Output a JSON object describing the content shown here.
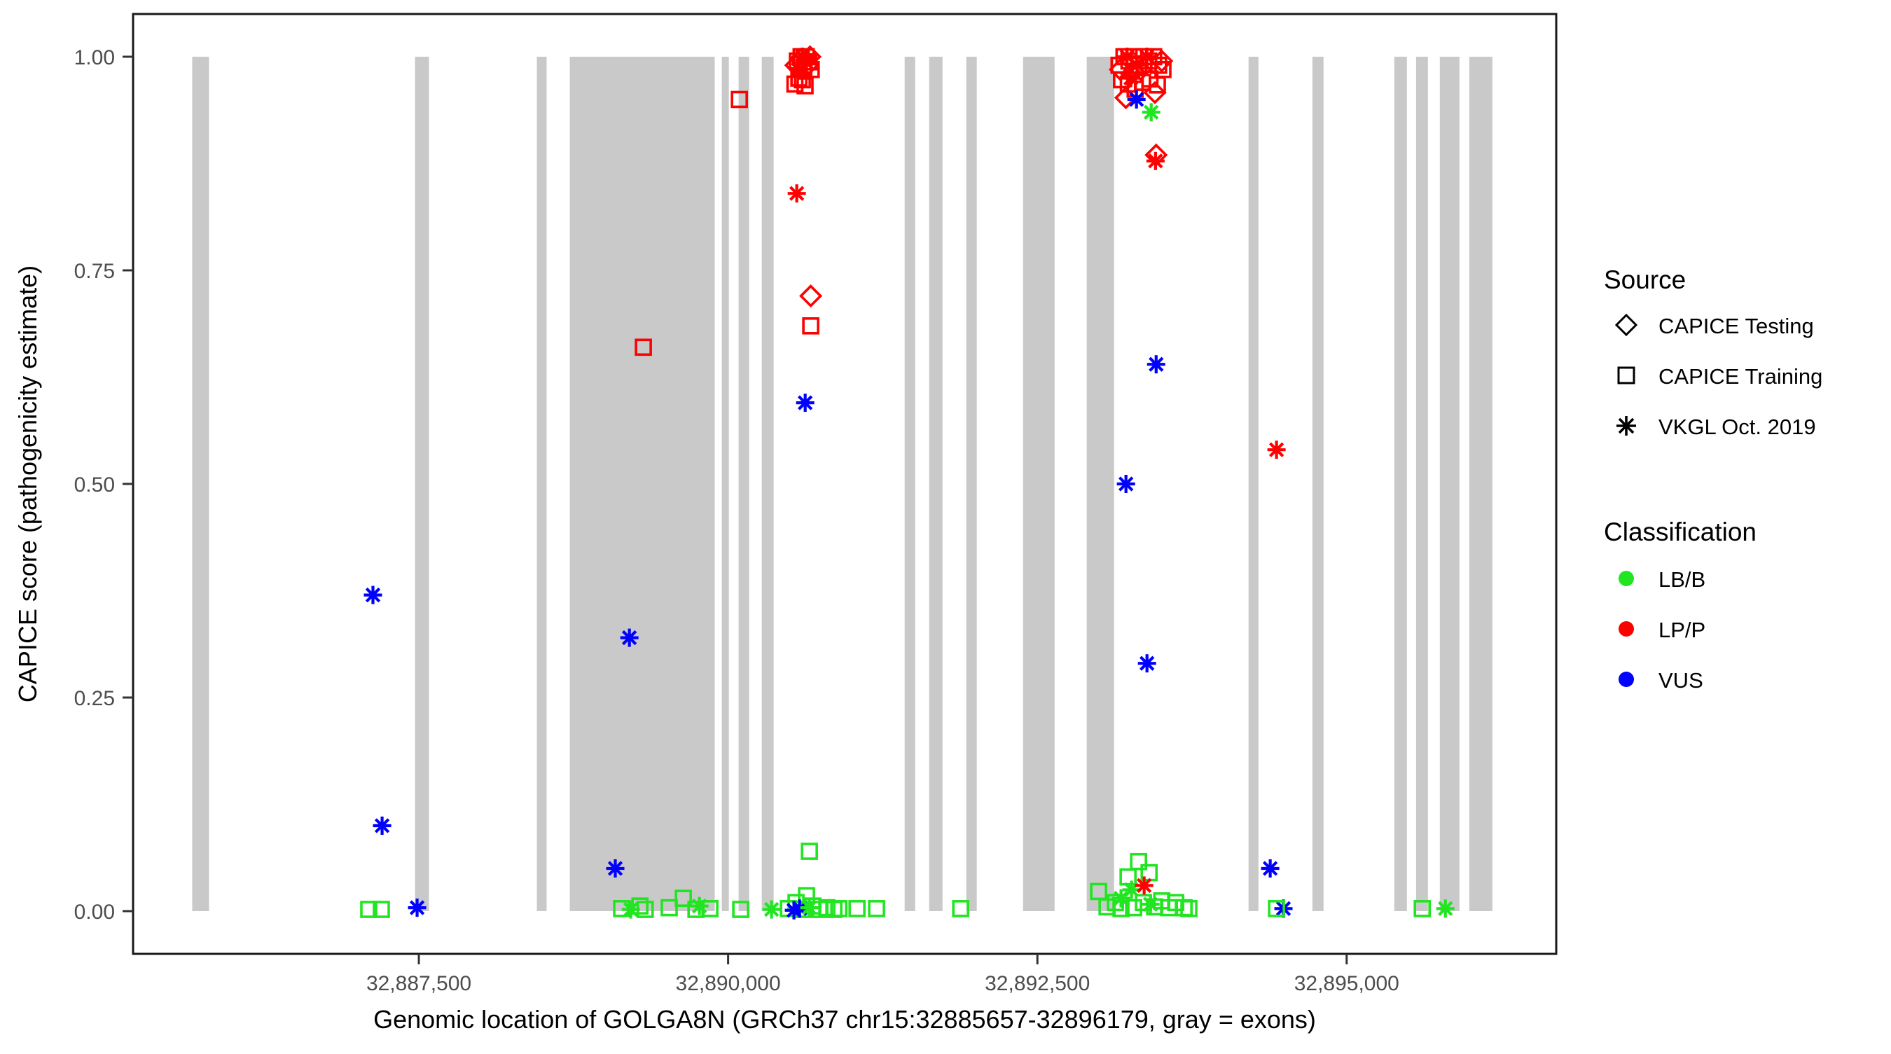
{
  "y_axis": {
    "label": "CAPICE score (pathogenicity estimate)",
    "ticks": [
      {
        "label": "1.00",
        "value": 1.0
      },
      {
        "label": "0.75",
        "value": 0.75
      },
      {
        "label": "0.50",
        "value": 0.5
      },
      {
        "label": "0.25",
        "value": 0.25
      },
      {
        "label": "0.00",
        "value": 0.0
      }
    ]
  },
  "x_axis": {
    "label": "Genomic location of GOLGA8N (GRCh37 chr15:32885657-32896179, gray = exons)",
    "ticks": [
      {
        "label": "32,887,500",
        "value": 32887500
      },
      {
        "label": "32,890,000",
        "value": 32890000
      },
      {
        "label": "32,892,500",
        "value": 32892500
      },
      {
        "label": "32,895,000",
        "value": 32895000
      }
    ]
  },
  "legend": {
    "source": {
      "title": "Source",
      "items": [
        {
          "label": "CAPICE Testing",
          "shape": "diamond",
          "code": "D"
        },
        {
          "label": "CAPICE Training",
          "shape": "square",
          "code": "S"
        },
        {
          "label": "VKGL Oct. 2019",
          "shape": "asterisk",
          "code": "A"
        }
      ]
    },
    "classification": {
      "title": "Classification",
      "items": [
        {
          "label": "LB/B",
          "color": "#21e521"
        },
        {
          "label": "LP/P",
          "color": "#ff0000"
        },
        {
          "label": "VUS",
          "color": "#0000ff"
        }
      ]
    }
  },
  "chart_data": {
    "type": "scatter",
    "title": "",
    "xlabel": "Genomic location of GOLGA8N (GRCh37 chr15:32885657-32896179, gray = exons)",
    "ylabel": "CAPICE score (pathogenicity estimate)",
    "x_domain": [
      32885190,
      32896694
    ],
    "y_domain": [
      -0.05,
      1.05
    ],
    "gene_range": [
      32885657,
      32896179
    ],
    "grid": "off",
    "legend_position": "right",
    "colors": {
      "LB_B": "#21e521",
      "LP_P": "#ff0000",
      "VUS": "#0000ff",
      "exon": "#c9c9c9",
      "tick_text": "#4d4d4d",
      "axis": "#333333"
    },
    "exons": [
      [
        32885668,
        32885804
      ],
      [
        32887469,
        32887582
      ],
      [
        32888454,
        32888533
      ],
      [
        32888720,
        32889892
      ],
      [
        32889949,
        32890006
      ],
      [
        32890085,
        32890170
      ],
      [
        32890272,
        32890368
      ],
      [
        32891427,
        32891512
      ],
      [
        32891625,
        32891733
      ],
      [
        32891925,
        32892010
      ],
      [
        32892384,
        32892639
      ],
      [
        32892899,
        32893120
      ],
      [
        32894207,
        32894287
      ],
      [
        32894723,
        32894813
      ],
      [
        32895385,
        32895487
      ],
      [
        32895561,
        32895657
      ],
      [
        32895753,
        32895912
      ],
      [
        32895991,
        32896178
      ]
    ],
    "points": [
      [
        32887129,
        0.37,
        "VUS",
        "A"
      ],
      [
        32887203,
        0.1,
        "VUS",
        "A"
      ],
      [
        32887095,
        0.002,
        "LB_B",
        "S"
      ],
      [
        32887197,
        0.002,
        "LB_B",
        "S"
      ],
      [
        32887486,
        0.004,
        "VUS",
        "A"
      ],
      [
        32889315,
        0.66,
        "LP_P",
        "S"
      ],
      [
        32889202,
        0.32,
        "VUS",
        "A"
      ],
      [
        32889088,
        0.05,
        "VUS",
        "A"
      ],
      [
        32889139,
        0.003,
        "LB_B",
        "S"
      ],
      [
        32889213,
        0.002,
        "LB_B",
        "A"
      ],
      [
        32889287,
        0.006,
        "LB_B",
        "S"
      ],
      [
        32889330,
        0.002,
        "LB_B",
        "S"
      ],
      [
        32889524,
        0.004,
        "LB_B",
        "S"
      ],
      [
        32889638,
        0.015,
        "LB_B",
        "S"
      ],
      [
        32889740,
        0.002,
        "LB_B",
        "S"
      ],
      [
        32889768,
        0.006,
        "LB_B",
        "A"
      ],
      [
        32889853,
        0.003,
        "LB_B",
        "S"
      ],
      [
        32890091,
        0.95,
        "LP_P",
        "S"
      ],
      [
        32890102,
        0.002,
        "LB_B",
        "S"
      ],
      [
        32890351,
        0.002,
        "LB_B",
        "A"
      ],
      [
        32890560,
        0.995,
        "LP_P",
        "S"
      ],
      [
        32890590,
        1.0,
        "LP_P",
        "S"
      ],
      [
        32890612,
        0.988,
        "LP_P",
        "S"
      ],
      [
        32890632,
        1.0,
        "LP_P",
        "S"
      ],
      [
        32890652,
        0.994,
        "LP_P",
        "S"
      ],
      [
        32890672,
        0.985,
        "LP_P",
        "S"
      ],
      [
        32890600,
        0.973,
        "LP_P",
        "S"
      ],
      [
        32890540,
        0.968,
        "LP_P",
        "S"
      ],
      [
        32890572,
        0.975,
        "LP_P",
        "S"
      ],
      [
        32890622,
        0.966,
        "LP_P",
        "S"
      ],
      [
        32890582,
        0.997,
        "LP_P",
        "D"
      ],
      [
        32890642,
        0.99,
        "LP_P",
        "D"
      ],
      [
        32890662,
        1.0,
        "LP_P",
        "D"
      ],
      [
        32890547,
        0.99,
        "LP_P",
        "D"
      ],
      [
        32890602,
        1.0,
        "LP_P",
        "A"
      ],
      [
        32890634,
        0.993,
        "LP_P",
        "A"
      ],
      [
        32890567,
        0.985,
        "LP_P",
        "A"
      ],
      [
        32890555,
        0.84,
        "LP_P",
        "A"
      ],
      [
        32890668,
        0.72,
        "LP_P",
        "D"
      ],
      [
        32890668,
        0.685,
        "LP_P",
        "S"
      ],
      [
        32890623,
        0.595,
        "VUS",
        "A"
      ],
      [
        32890657,
        0.07,
        "LB_B",
        "S"
      ],
      [
        32890487,
        0.003,
        "LB_B",
        "S"
      ],
      [
        32890549,
        0.01,
        "LB_B",
        "S"
      ],
      [
        32890606,
        0.002,
        "LB_B",
        "S"
      ],
      [
        32890634,
        0.018,
        "LB_B",
        "S"
      ],
      [
        32890685,
        0.006,
        "LB_B",
        "S"
      ],
      [
        32890742,
        0.002,
        "LB_B",
        "S"
      ],
      [
        32890798,
        0.004,
        "LB_B",
        "S"
      ],
      [
        32890855,
        0.002,
        "LB_B",
        "S"
      ],
      [
        32890895,
        0.003,
        "LB_B",
        "S"
      ],
      [
        32890578,
        0.003,
        "VUS",
        "A"
      ],
      [
        32890532,
        0.001,
        "VUS",
        "A"
      ],
      [
        32890657,
        0.004,
        "LB_B",
        "A"
      ],
      [
        32891042,
        0.003,
        "LB_B",
        "S"
      ],
      [
        32891200,
        0.003,
        "LB_B",
        "S"
      ],
      [
        32891880,
        0.003,
        "LB_B",
        "S"
      ],
      [
        32893160,
        0.99,
        "LP_P",
        "S"
      ],
      [
        32893200,
        1.0,
        "LP_P",
        "S"
      ],
      [
        32893240,
        0.995,
        "LP_P",
        "S"
      ],
      [
        32893280,
        1.0,
        "LP_P",
        "S"
      ],
      [
        32893320,
        0.99,
        "LP_P",
        "S"
      ],
      [
        32893360,
        1.0,
        "LP_P",
        "S"
      ],
      [
        32893400,
        0.995,
        "LP_P",
        "S"
      ],
      [
        32893440,
        1.0,
        "LP_P",
        "S"
      ],
      [
        32893480,
        0.99,
        "LP_P",
        "S"
      ],
      [
        32893515,
        0.985,
        "LP_P",
        "S"
      ],
      [
        32893180,
        0.973,
        "LP_P",
        "S"
      ],
      [
        32893235,
        0.968,
        "LP_P",
        "S"
      ],
      [
        32893290,
        0.962,
        "LP_P",
        "S"
      ],
      [
        32893350,
        0.97,
        "LP_P",
        "S"
      ],
      [
        32893410,
        0.974,
        "LP_P",
        "S"
      ],
      [
        32893470,
        0.967,
        "LP_P",
        "S"
      ],
      [
        32893170,
        0.985,
        "LP_P",
        "D"
      ],
      [
        32893260,
        0.98,
        "LP_P",
        "D"
      ],
      [
        32893335,
        0.985,
        "LP_P",
        "D"
      ],
      [
        32893450,
        0.958,
        "LP_P",
        "D"
      ],
      [
        32893505,
        0.995,
        "LP_P",
        "D"
      ],
      [
        32893215,
        0.952,
        "LP_P",
        "D"
      ],
      [
        32893225,
        1.0,
        "LP_P",
        "A"
      ],
      [
        32893305,
        0.99,
        "LP_P",
        "A"
      ],
      [
        32893385,
        1.0,
        "LP_P",
        "A"
      ],
      [
        32893255,
        0.975,
        "LP_P",
        "A"
      ],
      [
        32893301,
        0.95,
        "VUS",
        "A"
      ],
      [
        32893420,
        0.935,
        "LB_B",
        "A"
      ],
      [
        32893460,
        0.885,
        "LP_P",
        "D"
      ],
      [
        32893455,
        0.878,
        "LP_P",
        "A"
      ],
      [
        32893460,
        0.64,
        "VUS",
        "A"
      ],
      [
        32893216,
        0.5,
        "VUS",
        "A"
      ],
      [
        32893386,
        0.29,
        "VUS",
        "A"
      ],
      [
        32894433,
        0.54,
        "LP_P",
        "A"
      ],
      [
        32892995,
        0.023,
        "LB_B",
        "S"
      ],
      [
        32893063,
        0.005,
        "LB_B",
        "S"
      ],
      [
        32893131,
        0.01,
        "LB_B",
        "S"
      ],
      [
        32893176,
        0.003,
        "LB_B",
        "S"
      ],
      [
        32893233,
        0.04,
        "LB_B",
        "S"
      ],
      [
        32893278,
        0.004,
        "LB_B",
        "S"
      ],
      [
        32893318,
        0.058,
        "LB_B",
        "S"
      ],
      [
        32893357,
        0.01,
        "LB_B",
        "S"
      ],
      [
        32893403,
        0.045,
        "LB_B",
        "S"
      ],
      [
        32893448,
        0.005,
        "LB_B",
        "S"
      ],
      [
        32893505,
        0.012,
        "LB_B",
        "S"
      ],
      [
        32893561,
        0.004,
        "LB_B",
        "S"
      ],
      [
        32893618,
        0.01,
        "LB_B",
        "S"
      ],
      [
        32893686,
        0.004,
        "LB_B",
        "S"
      ],
      [
        32893725,
        0.003,
        "LB_B",
        "S"
      ],
      [
        32893261,
        0.025,
        "LB_B",
        "A"
      ],
      [
        32893414,
        0.008,
        "LB_B",
        "A"
      ],
      [
        32893176,
        0.015,
        "LB_B",
        "A"
      ],
      [
        32893363,
        0.03,
        "LP_P",
        "A"
      ],
      [
        32894382,
        0.05,
        "VUS",
        "A"
      ],
      [
        32894489,
        0.003,
        "VUS",
        "A"
      ],
      [
        32894433,
        0.003,
        "LB_B",
        "S"
      ],
      [
        32895611,
        0.003,
        "LB_B",
        "S"
      ],
      [
        32895798,
        0.003,
        "LB_B",
        "A"
      ]
    ]
  }
}
